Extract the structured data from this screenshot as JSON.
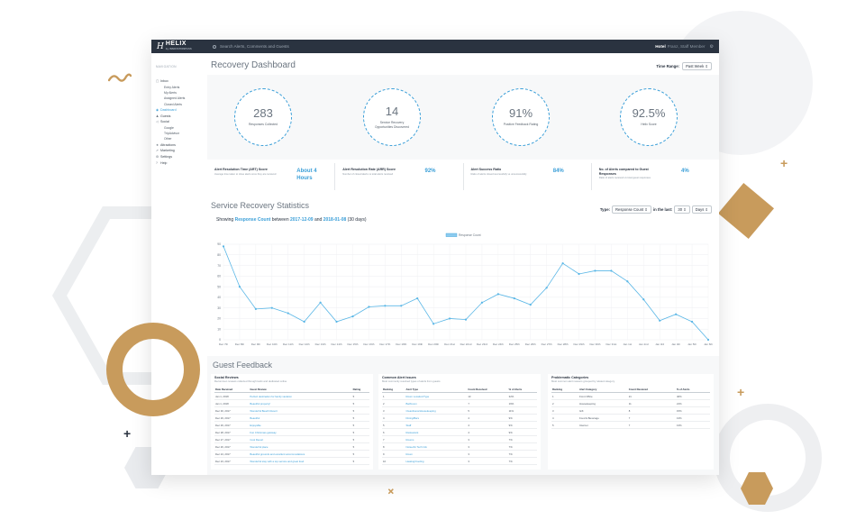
{
  "header": {
    "logo_name": "HELIX",
    "logo_sub": "by INNOVATIONPASS",
    "search_placeholder": "Search Alerts, Comments and Guests",
    "hotel_label": "Hotel",
    "user_label": "Franz, Staff Member"
  },
  "sidebar": {
    "title": "NAVIGATION",
    "items": [
      {
        "icon": "inbox-icon",
        "label": "Inbox",
        "subs": [
          "Entry Alerts",
          "My Alerts",
          "Assigned Alerts",
          "Closed Alerts"
        ]
      },
      {
        "icon": "dashboard-icon",
        "label": "Dashboard",
        "active": true,
        "subs": []
      },
      {
        "icon": "guests-icon",
        "label": "Guests",
        "subs": []
      },
      {
        "icon": "social-icon",
        "label": "Social",
        "subs": [
          "Google",
          "TripAdvisor",
          "Other"
        ]
      },
      {
        "icon": "attractions-icon",
        "label": "Attractions",
        "subs": []
      },
      {
        "icon": "marketing-icon",
        "label": "Marketing",
        "subs": []
      },
      {
        "icon": "settings-icon",
        "label": "Settings",
        "subs": []
      },
      {
        "icon": "help-icon",
        "label": "Help",
        "subs": []
      }
    ]
  },
  "dashboard": {
    "title": "Recovery Dashboard",
    "time_range_label": "Time Range:",
    "time_range_value": "Past Week",
    "kpis": [
      {
        "value": "283",
        "label": "Responses Collected"
      },
      {
        "value": "14",
        "label": "Service Recovery Opportunities Discovered"
      },
      {
        "value": "91%",
        "label": "Positive Feedback Rating"
      },
      {
        "value": "92.5%",
        "label": "Helix Score"
      }
    ],
    "metrics": [
      {
        "title": "Alert Resolution Time (ART) Score",
        "desc": "Average time taken to close alerts once they are received",
        "value": "About 4 Hours"
      },
      {
        "title": "Alert Resolution Rate (ARR) Score",
        "desc": "Number of closed alerts vs total alerts received",
        "value": "92%"
      },
      {
        "title": "Alert Success Ratio",
        "desc": "Ratio of alerts closed successfully vs unsuccessfully",
        "value": "84%"
      },
      {
        "title": "No. of Alerts compared to Guest Responses",
        "desc": "Ratio of alerts received vs total guest responses",
        "value": "4%"
      }
    ]
  },
  "stats": {
    "title": "Service Recovery Statistics",
    "type_label": "Type:",
    "type_value": "Response Count",
    "last_label": "in the last:",
    "last_num": "30",
    "last_unit": "Days",
    "showing_prefix": "Showing",
    "showing_metric": "Response Count",
    "showing_between": "between",
    "showing_from": "2017-12-09",
    "showing_and": "and",
    "showing_to": "2018-01-08",
    "showing_suffix": "(30 days)"
  },
  "chart_data": {
    "type": "line",
    "legend": "Response Count",
    "legend_position": "top-center",
    "grid": true,
    "ylim": [
      0,
      90
    ],
    "yticks": [
      0,
      10,
      20,
      30,
      40,
      50,
      60,
      70,
      80,
      90
    ],
    "categories": [
      "Dec 7th",
      "Dec 8th",
      "Dec 9th",
      "Dec 10th",
      "Dec 11th",
      "Dec 12th",
      "Dec 13th",
      "Dec 14th",
      "Dec 15th",
      "Dec 16th",
      "Dec 17th",
      "Dec 18th",
      "Dec 19th",
      "Dec 20th",
      "Dec 21st",
      "Dec 22nd",
      "Dec 23rd",
      "Dec 24th",
      "Dec 25th",
      "Dec 26th",
      "Dec 27th",
      "Dec 28th",
      "Dec 29th",
      "Dec 30th",
      "Dec 31st",
      "Jan 1st",
      "Jan 2nd",
      "Jan 3rd",
      "Jan 4th",
      "Jan 5th",
      "Jan 6th"
    ],
    "series": [
      {
        "name": "Response Count",
        "values": [
          88,
          50,
          29,
          30,
          25,
          17,
          35,
          17,
          22,
          31,
          32,
          32,
          39,
          15,
          20,
          19,
          35,
          43,
          39,
          33,
          49,
          72,
          62,
          65,
          65,
          55,
          38,
          18,
          24,
          17,
          0
        ]
      }
    ]
  },
  "feedback": {
    "title": "Guest Feedback",
    "social": {
      "title": "Social Reviews",
      "desc": "Recommen reviews collected through Helix and dedicated online",
      "headers": [
        "Date Received",
        "Guest Review",
        "Rating"
      ],
      "rows": [
        [
          "Jan 1, 2018",
          "Perfect destination for family vacation",
          "5"
        ],
        [
          "Jan 1, 2018",
          "Beautiful property!",
          "5"
        ],
        [
          "Dec 30, 2017",
          "Wonderful Beach Resort",
          "5"
        ],
        [
          "Dec 29, 2017",
          "Beautiful",
          "5"
        ],
        [
          "Dec 29, 2017",
          "Enjoyable",
          "5"
        ],
        [
          "Dec 28, 2017",
          "Fun Christmas getaway",
          "5"
        ],
        [
          "Dec 27, 2017",
          "Cool Resort",
          "5"
        ],
        [
          "Dec 26, 2017",
          "Wonderful place",
          "5"
        ],
        [
          "Dec 24, 2017",
          "Beautiful grounds and excellent accommodations",
          "5"
        ],
        [
          "Dec 23, 2017",
          "Wonderful stay with a top service and great food",
          "5"
        ]
      ]
    },
    "alerts": {
      "title": "Common Alert Issues",
      "desc": "Most commonly resolved types of alerts from guests",
      "headers": [
        "Ranking",
        "Alert Type",
        "Count Received",
        "% of Alerts"
      ],
      "rows": [
        [
          "1",
          "Room Location/Type",
          "13",
          "32%"
        ],
        [
          "2",
          "Bathroom",
          "7",
          "16%"
        ],
        [
          "3",
          "Cleanliness/Housekeeping",
          "5",
          "11%"
        ],
        [
          "4",
          "Dining/Bars",
          "4",
          "9%"
        ],
        [
          "5",
          "Staff",
          "4",
          "9%"
        ],
        [
          "6",
          "Restaurant",
          "4",
          "9%"
        ],
        [
          "7",
          "Rooms",
          "3",
          "7%"
        ],
        [
          "8",
          "Noise/Air Tech Info",
          "3",
          "7%"
        ],
        [
          "9",
          "Room",
          "3",
          "7%"
        ],
        [
          "10",
          "Heating/Cooling",
          "3",
          "7%"
        ]
      ]
    },
    "categories": {
      "title": "Problematic Categories",
      "desc": "Most common alert reasons grouped by related category",
      "headers": [
        "Ranking",
        "Alert Category",
        "Count Received",
        "% of Alerts"
      ],
      "rows": [
        [
          "1",
          "Front Office",
          "21",
          "40%"
        ],
        [
          "2",
          "Housekeeping",
          "11",
          "21%"
        ],
        [
          "3",
          "Gift",
          "8",
          "15%"
        ],
        [
          "4",
          "Food & Beverage",
          "7",
          "13%"
        ],
        [
          "5",
          "Internet",
          "7",
          "13%"
        ]
      ]
    }
  },
  "colors": {
    "accent": "#3b9fd8",
    "gold": "#c89b5c",
    "topbar": "#2a3340"
  }
}
